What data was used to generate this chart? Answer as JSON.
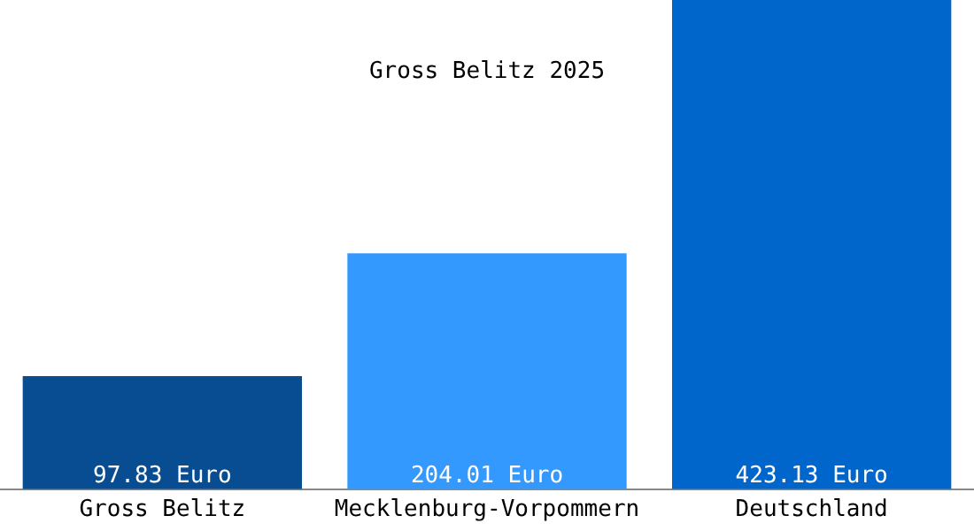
{
  "chart_data": {
    "type": "bar",
    "title": "Gross Belitz 2025",
    "categories": [
      "Gross Belitz",
      "Mecklenburg-Vorpommern",
      "Deutschland"
    ],
    "values": [
      97.83,
      204.01,
      423.13
    ],
    "colors": [
      "#084d91",
      "#3399ff",
      "#0066cc"
    ],
    "value_labels": [
      "97.83 Euro",
      "204.01 Euro",
      "423.13 Euro"
    ],
    "ylim": [
      0,
      423.13
    ],
    "tick_labels": "x",
    "grid": false,
    "legend": false
  }
}
